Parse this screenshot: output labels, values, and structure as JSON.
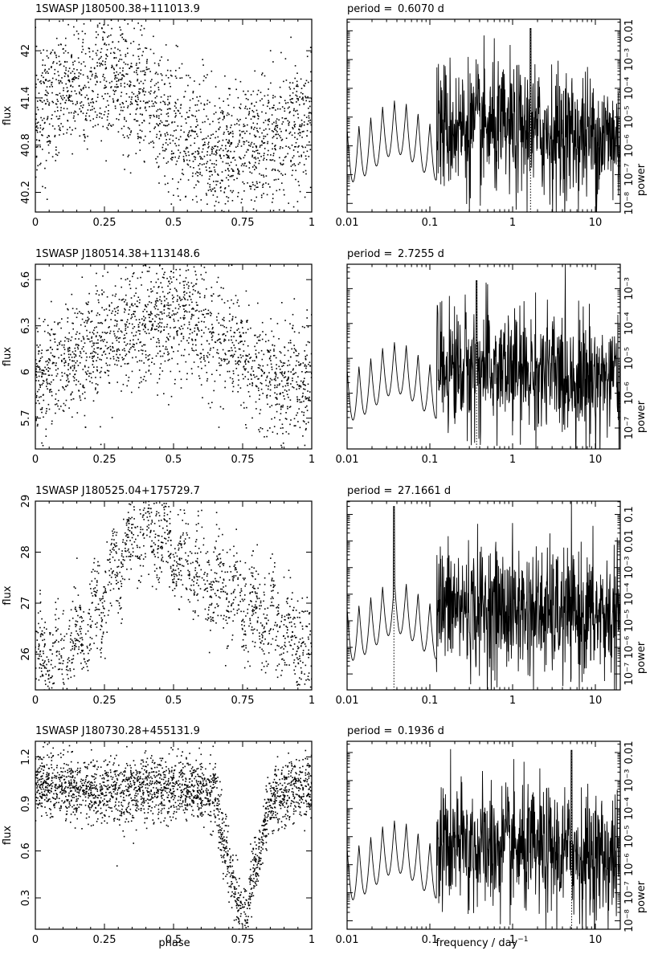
{
  "figure": {
    "ylabel_flux": "flux",
    "ylabel_power": "power",
    "xlabel_phase": "phase",
    "xlabel_freq": "frequency / day",
    "xlabel_freq_exp": "−1",
    "period_prefix": "period ="
  },
  "chart_data": [
    {
      "type": "scatter",
      "title": "1SWASP J180500.38+111013.9",
      "xlabel": "",
      "ylabel": "flux",
      "xlim": [
        0,
        1
      ],
      "ylim": [
        39.95,
        42.4
      ],
      "xticks": [
        0,
        0.25,
        0.5,
        0.75,
        1
      ],
      "xtick_labels": [
        "0",
        "0.25",
        "0.5",
        "0.75",
        "1"
      ],
      "yticks": [
        40.2,
        40.8,
        41.4,
        42
      ],
      "ytick_labels": [
        "40.2",
        "40.8",
        "41.4",
        "42"
      ],
      "trend": {
        "phase": [
          0,
          0.1,
          0.25,
          0.4,
          0.5,
          0.6,
          0.75,
          0.9,
          1
        ],
        "flux": [
          41.15,
          41.5,
          41.65,
          41.35,
          41.05,
          40.75,
          40.7,
          40.9,
          41.15
        ]
      },
      "scatter_sd": 0.42,
      "n_points": 1900
    },
    {
      "type": "line",
      "period_label": "period =",
      "period": "0.6070 d",
      "xlabel": "",
      "ylabel": "power",
      "xscale": "log",
      "yscale": "log",
      "xlim": [
        0.01,
        20
      ],
      "ylim_exp": [
        -8.3,
        -1.6
      ],
      "xtick_labels": [
        "0.01",
        "0.1",
        "1",
        "10"
      ],
      "ytick_labels": [
        "10⁻⁸",
        "10⁻⁷",
        "10⁻⁶",
        "10⁻⁵",
        "10⁻⁴",
        "10⁻³",
        "0.01"
      ],
      "peak_frequency": 1.6474,
      "peak_power": 0.012
    },
    {
      "type": "scatter",
      "title": "1SWASP J180514.38+113148.6",
      "xlabel": "",
      "ylabel": "flux",
      "xlim": [
        0,
        1
      ],
      "ylim": [
        5.5,
        6.7
      ],
      "xticks": [
        0,
        0.25,
        0.5,
        0.75,
        1
      ],
      "xtick_labels": [
        "0",
        "0.25",
        "0.5",
        "0.75",
        "1"
      ],
      "yticks": [
        5.7,
        6,
        6.3,
        6.6
      ],
      "ytick_labels": [
        "5.7",
        "6",
        "6.3",
        "6.6"
      ],
      "trend": {
        "phase": [
          0,
          0.1,
          0.25,
          0.4,
          0.55,
          0.7,
          0.8,
          0.9,
          1
        ],
        "flux": [
          5.95,
          6.05,
          6.22,
          6.3,
          6.38,
          6.2,
          6.0,
          5.95,
          5.95
        ]
      },
      "scatter_sd": 0.2,
      "n_points": 1800
    },
    {
      "type": "line",
      "period_label": "period =",
      "period": "2.7255 d",
      "xlabel": "",
      "ylabel": "power",
      "xscale": "log",
      "yscale": "log",
      "xlim": [
        0.01,
        20
      ],
      "ylim_exp": [
        -7.6,
        -2.3
      ],
      "xtick_labels": [
        "0.01",
        "0.1",
        "1",
        "10"
      ],
      "ytick_labels": [
        "10⁻⁷",
        "10⁻⁶",
        "10⁻⁵",
        "10⁻⁴",
        "10⁻³"
      ],
      "peak_frequency": 0.3669,
      "peak_power": 0.0017
    },
    {
      "type": "scatter",
      "title": "1SWASP J180525.04+175729.7",
      "xlabel": "",
      "ylabel": "flux",
      "xlim": [
        0,
        1
      ],
      "ylim": [
        25.3,
        29
      ],
      "xticks": [
        0,
        0.25,
        0.5,
        0.75,
        1
      ],
      "xtick_labels": [
        "0",
        "0.25",
        "0.5",
        "0.75",
        "1"
      ],
      "yticks": [
        26,
        27,
        28,
        29
      ],
      "ytick_labels": [
        "26",
        "27",
        "28",
        "29"
      ],
      "trend": {
        "phase": [
          0,
          0.1,
          0.2,
          0.3,
          0.4,
          0.5,
          0.6,
          0.75,
          0.9,
          1
        ],
        "flux": [
          25.8,
          26.0,
          26.6,
          27.8,
          28.5,
          28.0,
          27.6,
          27.0,
          26.5,
          25.9
        ]
      },
      "scatter_sd": 0.45,
      "n_points": 1500
    },
    {
      "type": "line",
      "period_label": "period =",
      "period": "27.1661 d",
      "xlabel": "",
      "ylabel": "power",
      "xscale": "log",
      "yscale": "log",
      "xlim": [
        0.01,
        20
      ],
      "ylim_exp": [
        -7.6,
        -0.5
      ],
      "xtick_labels": [
        "0.01",
        "0.1",
        "1",
        "10"
      ],
      "ytick_labels": [
        "10⁻⁷",
        "10⁻⁶",
        "10⁻⁵",
        "10⁻⁴",
        "10⁻³",
        "0.01",
        "0.1"
      ],
      "peak_frequency": 0.0368,
      "peak_power": 0.2
    },
    {
      "type": "scatter",
      "title": "1SWASP J180730.28+455131.9",
      "xlabel": "phase",
      "ylabel": "flux",
      "xlim": [
        0,
        1
      ],
      "ylim": [
        0.1,
        1.3
      ],
      "xticks": [
        0,
        0.25,
        0.5,
        0.75,
        1
      ],
      "xtick_labels": [
        "0",
        "0.25",
        "0.5",
        "0.75",
        "1"
      ],
      "yticks": [
        0.3,
        0.6,
        0.9,
        1.2
      ],
      "ytick_labels": [
        "0.3",
        "0.6",
        "0.9",
        "1.2"
      ],
      "trend": {
        "phase": [
          0,
          0.25,
          0.5,
          0.65,
          0.7,
          0.75,
          0.8,
          0.85,
          1
        ],
        "flux": [
          1.02,
          0.98,
          1.0,
          0.98,
          0.5,
          0.15,
          0.5,
          0.95,
          1.02
        ]
      },
      "scatter_sd": 0.1,
      "n_points": 2400
    },
    {
      "type": "line",
      "period_label": "period =",
      "period": "0.1936 d",
      "xlabel": "frequency / day⁻¹",
      "ylabel": "power",
      "xscale": "log",
      "yscale": "log",
      "xlim": [
        0.01,
        20
      ],
      "ylim_exp": [
        -8.3,
        -1.6
      ],
      "xtick_labels": [
        "0.01",
        "0.1",
        "1",
        "10"
      ],
      "ytick_labels": [
        "10⁻⁸",
        "10⁻⁷",
        "10⁻⁶",
        "10⁻⁵",
        "10⁻⁴",
        "10⁻³",
        "0.01"
      ],
      "peak_frequency": 5.165,
      "peak_power": 0.012
    }
  ]
}
